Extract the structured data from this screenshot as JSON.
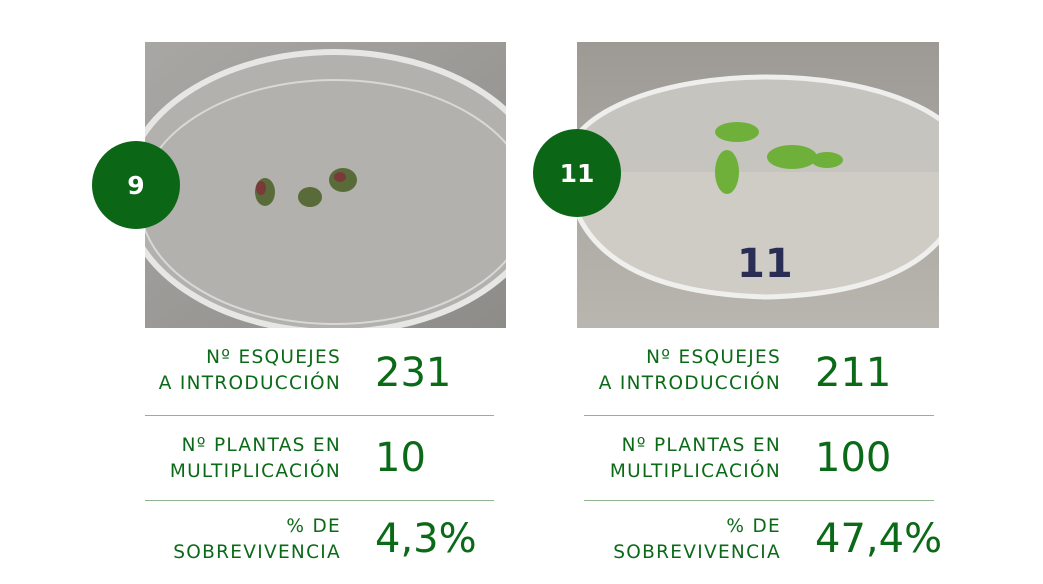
{
  "accent_color": "#0b6616",
  "cards": [
    {
      "badge": "9",
      "photo_icon": "petri-dish-photo",
      "stats": [
        {
          "label_line1": "Nº ESQUEJES",
          "label_line2": "A INTRODUCCIÓN",
          "value": "231"
        },
        {
          "label_line1": "Nº PLANTAS EN",
          "label_line2": "MULTIPLICACIÓN",
          "value": "10"
        },
        {
          "label_line1": "% DE",
          "label_line2": "SOBREVIVENCIA",
          "value": "4,3%"
        }
      ]
    },
    {
      "badge": "11",
      "photo_icon": "petri-dish-photo",
      "photo_dish_marking": "11",
      "stats": [
        {
          "label_line1": "Nº ESQUEJES",
          "label_line2": "A INTRODUCCIÓN",
          "value": "211"
        },
        {
          "label_line1": "Nº PLANTAS EN",
          "label_line2": "MULTIPLICACIÓN",
          "value": "100"
        },
        {
          "label_line1": "% DE",
          "label_line2": "SOBREVIVENCIA",
          "value": "47,4%"
        }
      ]
    }
  ]
}
